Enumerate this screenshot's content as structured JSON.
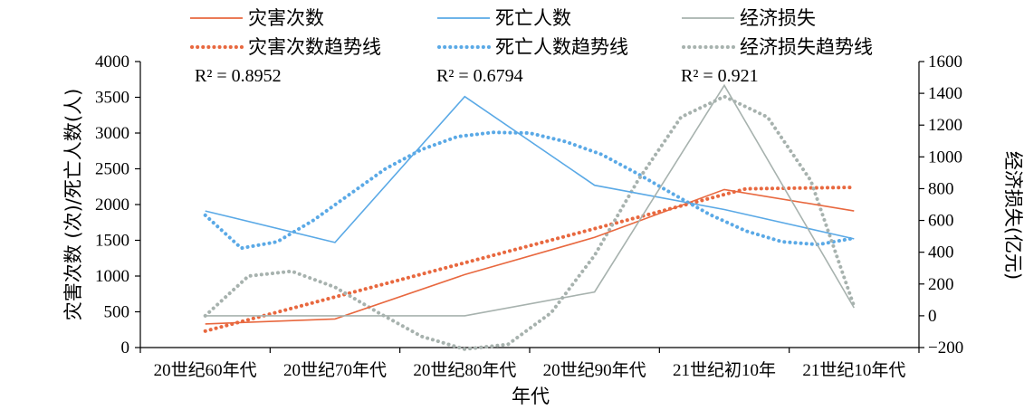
{
  "chart_data": {
    "type": "line",
    "xlabel": "年代",
    "ylabel_left": "灾害次数 (次)/死亡人数(人)",
    "ylabel_right": "经济损失(亿元)",
    "categories": [
      "20世纪60年代",
      "20世纪70年代",
      "20世纪80年代",
      "20世纪90年代",
      "21世纪初10年",
      "21世纪10年代"
    ],
    "y_left": {
      "min": 0,
      "max": 4000,
      "ticks": [
        0,
        500,
        1000,
        1500,
        2000,
        2500,
        3000,
        3500,
        4000
      ]
    },
    "y_right": {
      "min": -200,
      "max": 1600,
      "ticks": [
        -200,
        0,
        200,
        400,
        600,
        800,
        1000,
        1200,
        1400,
        1600
      ]
    },
    "grid": false,
    "legend_position": "top",
    "series": [
      {
        "name": "灾害次数",
        "axis": "left",
        "color": "#e8683f",
        "values": [
          330,
          400,
          1020,
          1540,
          2210,
          1910
        ]
      },
      {
        "name": "死亡人数",
        "axis": "left",
        "color": "#5aa9e6",
        "values": [
          1910,
          1470,
          3510,
          2270,
          1930,
          1520
        ]
      },
      {
        "name": "经济损失",
        "axis": "right",
        "color": "#a7b2ae",
        "values": [
          0,
          0,
          0,
          150,
          1450,
          50
        ]
      }
    ],
    "trendlines": [
      {
        "name": "灾害次数趋势线",
        "axis": "left",
        "color": "#e8683f",
        "r2_label": "R² = 0.8952",
        "values": [
          230,
          628,
          1026,
          1424,
          1822,
          2220,
          2240
        ]
      },
      {
        "name": "死亡人数趋势线",
        "axis": "left",
        "color": "#5aa9e6",
        "r2_label": "R² = 0.6794",
        "values": [
          1850,
          1390,
          1480,
          1780,
          2140,
          2500,
          2770,
          2950,
          3010,
          3000,
          2880,
          2700,
          2430,
          2140,
          1860,
          1630,
          1480,
          1440,
          1530
        ]
      },
      {
        "name": "经济损失趋势线",
        "axis": "right",
        "color": "#a7b2ae",
        "r2_label": "R² = 0.921",
        "values": [
          0,
          250,
          280,
          180,
          20,
          -130,
          -210,
          -180,
          20,
          380,
          850,
          1250,
          1380,
          1250,
          850,
          60
        ]
      }
    ]
  }
}
